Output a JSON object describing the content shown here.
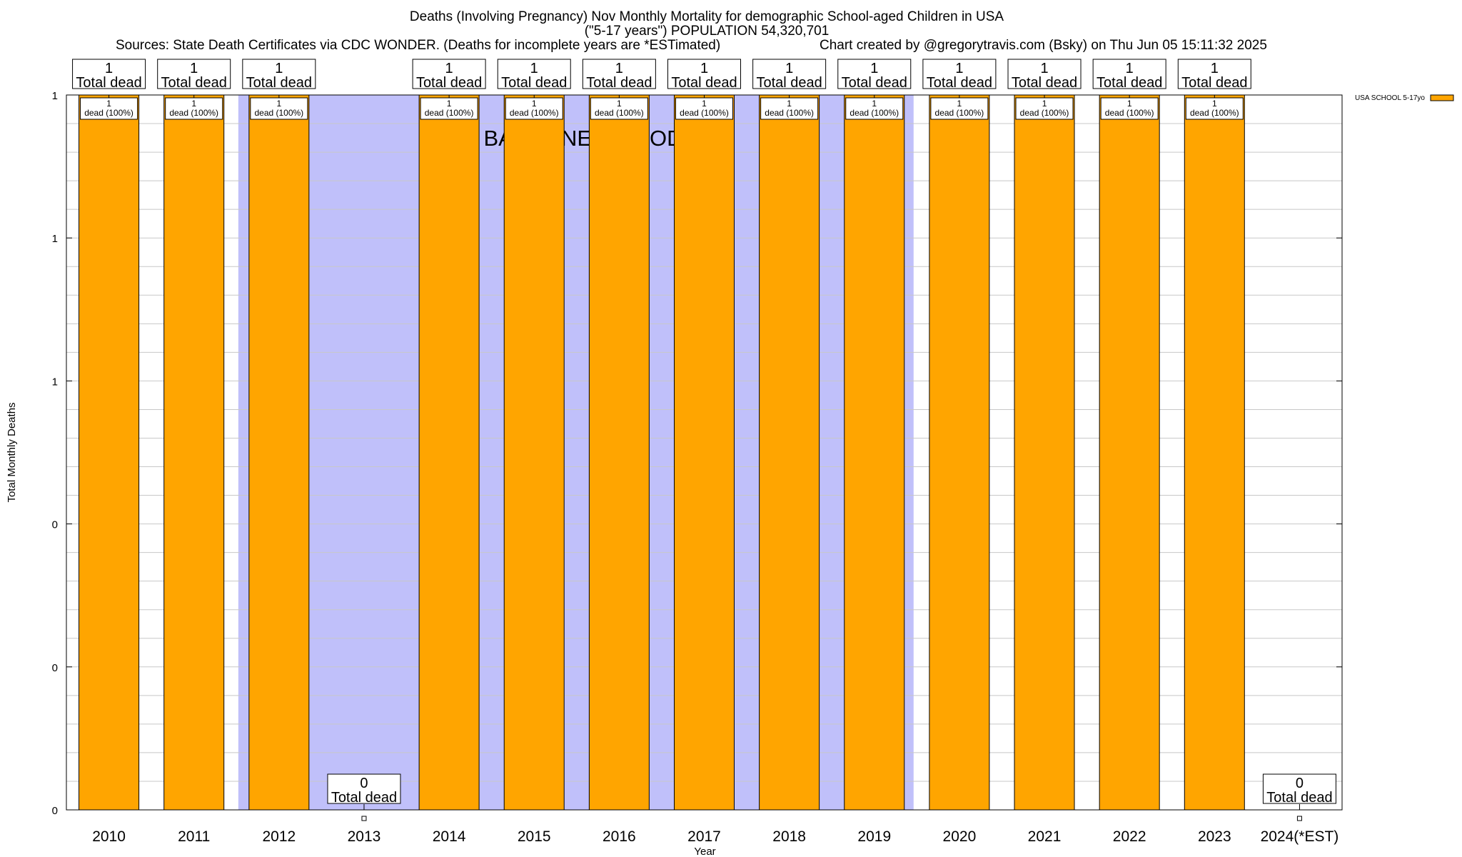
{
  "chart_data": {
    "type": "bar",
    "title": "Deaths (Involving Pregnancy) Nov Monthly Mortality for demographic School-aged Children in USA",
    "subtitle": "(\"5-17 years\") POPULATION 54,320,701",
    "sources": "Sources: State Death Certificates via CDC WONDER. (Deaths for incomplete years are *ESTimated)",
    "credit": "Chart created by @gregorytravis.com (Bsky) on Thu Jun 05 15:11:32 2025",
    "xlabel": "Year",
    "ylabel": "Total Monthly Deaths",
    "ylim": [
      0,
      1
    ],
    "ytick_labels": [
      "0",
      "0",
      "0",
      "1",
      "1",
      "1"
    ],
    "categories": [
      "2010",
      "2011",
      "2012",
      "2013",
      "2014",
      "2015",
      "2016",
      "2017",
      "2018",
      "2019",
      "2020",
      "2021",
      "2022",
      "2023",
      "2024(*EST)"
    ],
    "series": [
      {
        "name": "USA SCHOOL 5-17yo",
        "color": "#ffa500",
        "values": [
          1,
          1,
          1,
          0,
          1,
          1,
          1,
          1,
          1,
          1,
          1,
          1,
          1,
          1,
          0
        ]
      }
    ],
    "top_labels": [
      "1\nTotal dead",
      "1\nTotal dead",
      "1\nTotal dead",
      "0\nTotal dead",
      "1\nTotal dead",
      "1\nTotal dead",
      "1\nTotal dead",
      "1\nTotal dead",
      "1\nTotal dead",
      "1\nTotal dead",
      "1\nTotal dead",
      "1\nTotal dead",
      "1\nTotal dead",
      "1\nTotal dead",
      "0\nTotal dead"
    ],
    "inner_labels": [
      "1\ndead (100%)",
      "1\ndead (100%)",
      "1\ndead (100%)",
      "",
      "1\ndead (100%)",
      "1\ndead (100%)",
      "1\ndead (100%)",
      "1\ndead (100%)",
      "1\ndead (100%)",
      "1\ndead (100%)",
      "1\ndead (100%)",
      "1\ndead (100%)",
      "1\ndead (100%)",
      "1\ndead (100%)",
      ""
    ],
    "baseline": {
      "label": "BASELINE PERIOD",
      "from": "2012",
      "to": "2019",
      "color": "#c0c0fa"
    },
    "legend": "top-right",
    "grid": true
  }
}
